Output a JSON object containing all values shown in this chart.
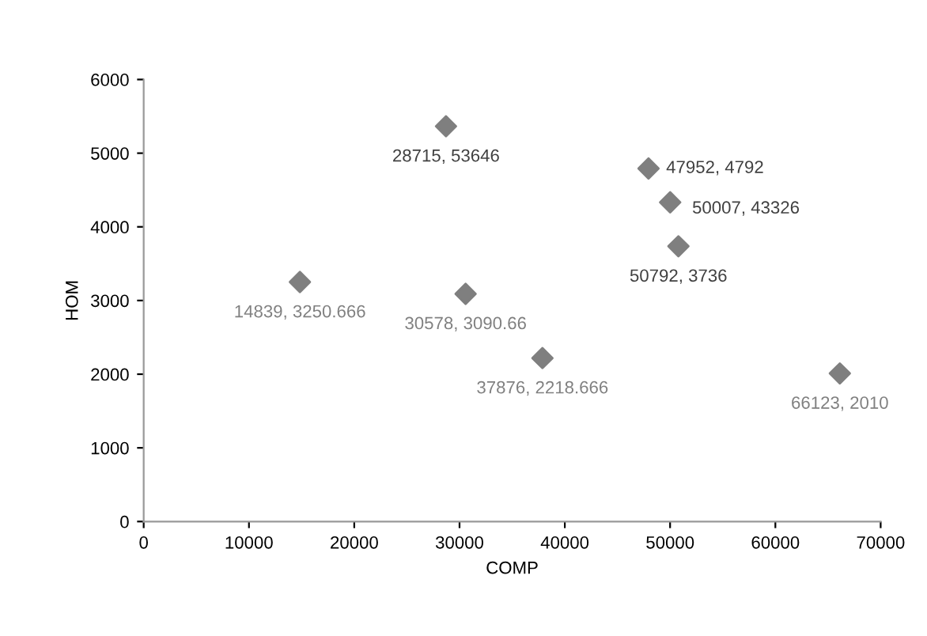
{
  "chart_data": {
    "type": "scatter",
    "xlabel": "COMP",
    "ylabel": "HOM",
    "x": [
      28715,
      47952,
      50007,
      50792,
      14839,
      30578,
      37876,
      66123
    ],
    "values": [
      5365,
      4792,
      4333,
      3736,
      3250.666,
      3090.66,
      2218.666,
      2010
    ],
    "value_labels": [
      "28715, 53646",
      "47952, 4792",
      "50007, 43326",
      "50792, 3736",
      "14839, 3250.666",
      "30578, 3090.66",
      "37876, 2218.666",
      "66123, 2010"
    ],
    "color": "#7f7f7f",
    "marker": "diamond",
    "grid": false,
    "legend": false,
    "xlim": [
      0,
      70000
    ],
    "xticks": [
      0,
      10000,
      20000,
      30000,
      40000,
      50000,
      60000,
      70000
    ],
    "ylim": [
      0,
      6000
    ],
    "yticks": [
      0,
      1000,
      2000,
      3000,
      4000,
      5000,
      6000
    ]
  }
}
